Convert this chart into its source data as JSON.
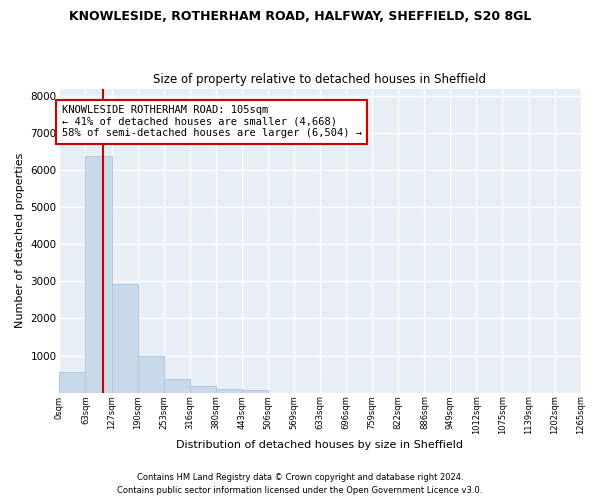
{
  "title": "KNOWLESIDE, ROTHERHAM ROAD, HALFWAY, SHEFFIELD, S20 8GL",
  "subtitle": "Size of property relative to detached houses in Sheffield",
  "xlabel": "Distribution of detached houses by size in Sheffield",
  "ylabel": "Number of detached properties",
  "bar_color": "#c8daea",
  "bar_edge_color": "#b0c8dc",
  "background_color": "#e8eef6",
  "grid_color": "#ffffff",
  "fig_color": "#ffffff",
  "bins": [
    0,
    63,
    127,
    190,
    253,
    316,
    380,
    443,
    506,
    569,
    633,
    696,
    759,
    822,
    886,
    949,
    1012,
    1075,
    1139,
    1202,
    1265
  ],
  "bin_labels": [
    "0sqm",
    "63sqm",
    "127sqm",
    "190sqm",
    "253sqm",
    "316sqm",
    "380sqm",
    "443sqm",
    "506sqm",
    "569sqm",
    "633sqm",
    "696sqm",
    "759sqm",
    "822sqm",
    "886sqm",
    "949sqm",
    "1012sqm",
    "1075sqm",
    "1139sqm",
    "1202sqm",
    "1265sqm"
  ],
  "values": [
    550,
    6380,
    2920,
    990,
    360,
    175,
    100,
    80,
    0,
    0,
    0,
    0,
    0,
    0,
    0,
    0,
    0,
    0,
    0,
    0
  ],
  "red_line_x": 105,
  "annotation_text": "KNOWLESIDE ROTHERHAM ROAD: 105sqm\n← 41% of detached houses are smaller (4,668)\n58% of semi-detached houses are larger (6,504) →",
  "annotation_box_color": "#ffffff",
  "annotation_edge_color": "#cc0000",
  "ylim": [
    0,
    8200
  ],
  "yticks": [
    0,
    1000,
    2000,
    3000,
    4000,
    5000,
    6000,
    7000,
    8000
  ],
  "footer_line1": "Contains HM Land Registry data © Crown copyright and database right 2024.",
  "footer_line2": "Contains public sector information licensed under the Open Government Licence v3.0."
}
